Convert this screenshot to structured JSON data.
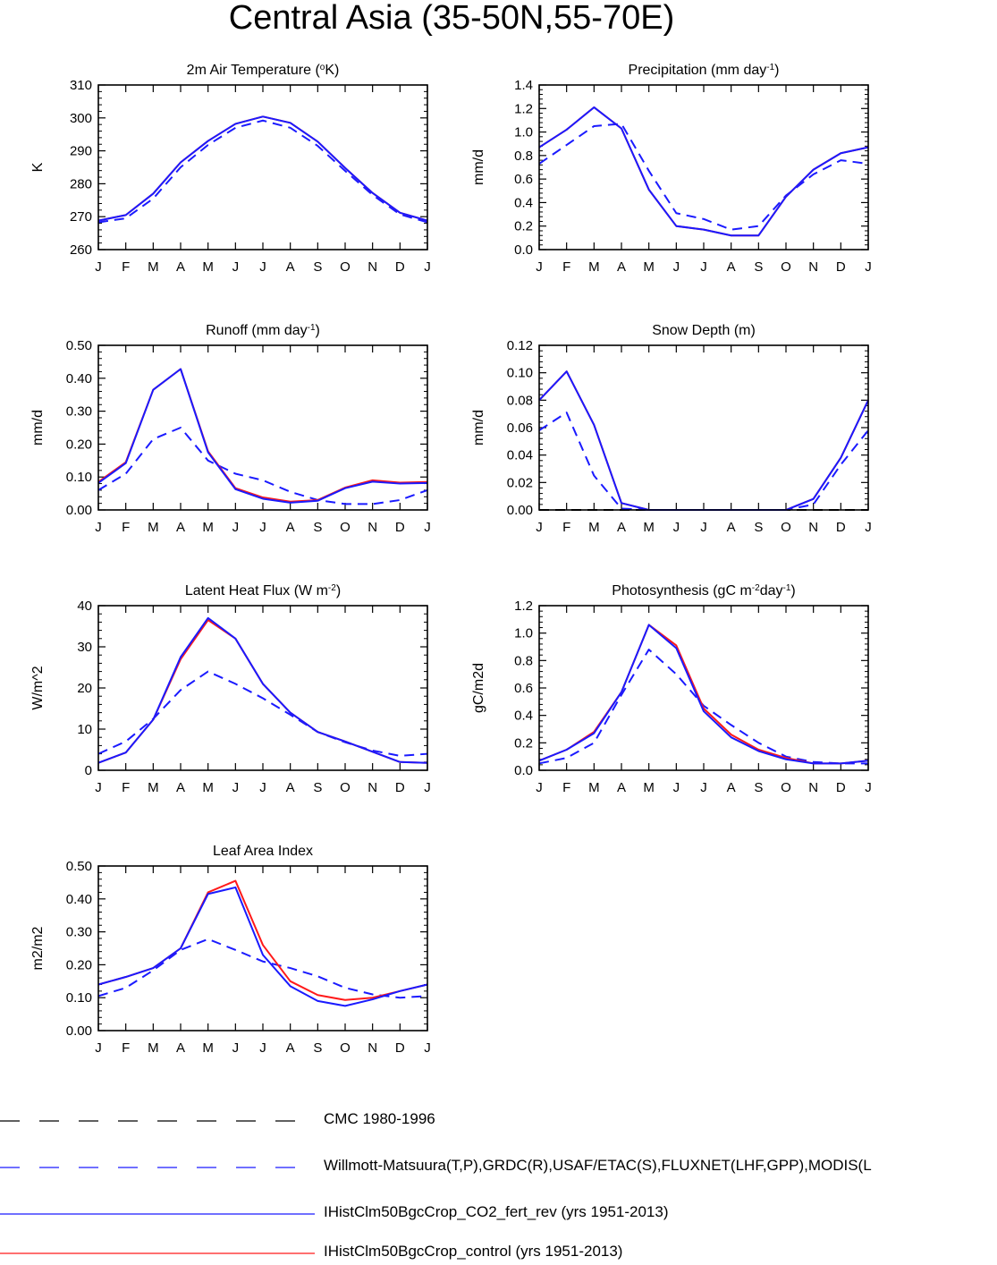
{
  "title": "Central Asia (35-50N,55-70E)",
  "months": [
    "J",
    "F",
    "M",
    "A",
    "M",
    "J",
    "J",
    "A",
    "S",
    "O",
    "N",
    "D",
    "J"
  ],
  "colors": {
    "obs": "#1a1aff",
    "co2": "#1a1aff",
    "control": "#ff1a1a",
    "cmc": "#000000"
  },
  "legend": [
    {
      "label": "CMC 1980-1996",
      "color": "#000000",
      "style": "dashed"
    },
    {
      "label": "Willmott-Matsuura(T,P),GRDC(R),USAF/ETAC(S),FLUXNET(LHF,GPP),MODIS(L",
      "color": "#1a1aff",
      "style": "dashed"
    },
    {
      "label": "IHistClm50BgcCrop_CO2_fert_rev (yrs 1951-2013)",
      "color": "#1a1aff",
      "style": "solid"
    },
    {
      "label": "IHistClm50BgcCrop_control (yrs 1951-2013)",
      "color": "#ff1a1a",
      "style": "solid"
    }
  ],
  "chart_data": [
    {
      "type": "line",
      "title": "2m Air Temperature (",
      "title_sup": "o",
      "title_after": "K)",
      "ylabel": "K",
      "ylim": [
        260,
        310
      ],
      "yticks": [
        260,
        270,
        280,
        290,
        300,
        310
      ],
      "tick_decimals": 0,
      "series": [
        {
          "role": "obs",
          "values": [
            268.3,
            269.5,
            275.5,
            285.0,
            291.8,
            297.0,
            299.2,
            297.0,
            291.5,
            283.9,
            276.6,
            270.7,
            268.3
          ]
        },
        {
          "role": "control",
          "values": [
            268.8,
            270.5,
            277.0,
            286.5,
            293.0,
            298.2,
            300.4,
            298.5,
            292.8,
            284.8,
            277.2,
            271.2,
            268.8
          ]
        },
        {
          "role": "co2",
          "values": [
            268.8,
            270.5,
            277.0,
            286.5,
            293.0,
            298.2,
            300.4,
            298.5,
            292.8,
            284.8,
            277.2,
            271.2,
            268.8
          ]
        }
      ]
    },
    {
      "type": "line",
      "title": "Precipitation (mm day",
      "title_sup": "-1",
      "title_after": ")",
      "ylabel": "mm/d",
      "ylim": [
        0,
        1.4
      ],
      "yticks": [
        0,
        0.2,
        0.4,
        0.6,
        0.8,
        1.0,
        1.2,
        1.4
      ],
      "tick_decimals": 1,
      "series": [
        {
          "role": "obs",
          "values": [
            0.73,
            0.89,
            1.05,
            1.07,
            0.67,
            0.31,
            0.26,
            0.17,
            0.2,
            0.46,
            0.64,
            0.76,
            0.73
          ]
        },
        {
          "role": "control",
          "values": [
            0.87,
            1.02,
            1.21,
            1.03,
            0.51,
            0.2,
            0.17,
            0.12,
            0.12,
            0.45,
            0.68,
            0.82,
            0.87
          ]
        },
        {
          "role": "co2",
          "values": [
            0.87,
            1.02,
            1.21,
            1.03,
            0.51,
            0.2,
            0.17,
            0.12,
            0.12,
            0.45,
            0.68,
            0.82,
            0.87
          ]
        }
      ]
    },
    {
      "type": "line",
      "title": "Runoff (mm day",
      "title_sup": "-1",
      "title_after": ")",
      "ylabel": "mm/d",
      "ylim": [
        0,
        0.5
      ],
      "yticks": [
        0,
        0.1,
        0.2,
        0.3,
        0.4,
        0.5
      ],
      "tick_decimals": 2,
      "series": [
        {
          "role": "obs",
          "values": [
            0.06,
            0.11,
            0.215,
            0.25,
            0.15,
            0.11,
            0.09,
            0.055,
            0.03,
            0.018,
            0.018,
            0.03,
            0.06
          ]
        },
        {
          "role": "control",
          "values": [
            0.085,
            0.145,
            0.365,
            0.428,
            0.178,
            0.066,
            0.038,
            0.025,
            0.03,
            0.068,
            0.09,
            0.083,
            0.085
          ]
        },
        {
          "role": "co2",
          "values": [
            0.082,
            0.142,
            0.365,
            0.428,
            0.175,
            0.063,
            0.034,
            0.022,
            0.028,
            0.066,
            0.086,
            0.08,
            0.082
          ]
        }
      ]
    },
    {
      "type": "line",
      "title": "Snow Depth (m)",
      "ylabel": "mm/d",
      "ylim": [
        0,
        0.12
      ],
      "yticks": [
        0,
        0.02,
        0.04,
        0.06,
        0.08,
        0.1,
        0.12
      ],
      "tick_decimals": 2,
      "series": [
        {
          "role": "cmc",
          "values": [
            0,
            0,
            0,
            0,
            0,
            0,
            0,
            0,
            0,
            0,
            0,
            0,
            0
          ]
        },
        {
          "role": "obs",
          "values": [
            0.058,
            0.071,
            0.025,
            0.001,
            0,
            0,
            0,
            0,
            0,
            0,
            0.004,
            0.033,
            0.058
          ]
        },
        {
          "role": "control",
          "values": [
            0.08,
            0.101,
            0.062,
            0.005,
            0,
            0,
            0,
            0,
            0,
            0,
            0.008,
            0.038,
            0.08
          ]
        },
        {
          "role": "co2",
          "values": [
            0.08,
            0.101,
            0.062,
            0.005,
            0,
            0,
            0,
            0,
            0,
            0,
            0.008,
            0.038,
            0.08
          ]
        }
      ]
    },
    {
      "type": "line",
      "title": "Latent Heat Flux (W m",
      "title_sup": "-2",
      "title_after": ")",
      "ylabel": "W/m^2",
      "ylim": [
        0,
        40
      ],
      "yticks": [
        0,
        10,
        20,
        30,
        40
      ],
      "tick_decimals": 0,
      "series": [
        {
          "role": "obs",
          "values": [
            4.0,
            7.0,
            12.5,
            19.5,
            24.0,
            21.0,
            17.5,
            13.5,
            9.3,
            6.8,
            4.8,
            3.5,
            4.0
          ]
        },
        {
          "role": "control",
          "values": [
            1.8,
            4.3,
            12.3,
            27.0,
            36.5,
            32.0,
            21.0,
            14.0,
            9.3,
            7.0,
            4.5,
            2.0,
            1.8
          ]
        },
        {
          "role": "co2",
          "values": [
            1.8,
            4.3,
            12.3,
            27.5,
            37.0,
            32.0,
            21.0,
            14.0,
            9.3,
            7.0,
            4.5,
            2.0,
            1.8
          ]
        }
      ]
    },
    {
      "type": "line",
      "title": "Photosynthesis (gC m",
      "title_sup": "-2",
      "title_mid": "day",
      "title_sup2": "-1",
      "title_after": ")",
      "ylabel": "gC/m2d",
      "ylim": [
        0,
        1.2
      ],
      "yticks": [
        0,
        0.2,
        0.4,
        0.6,
        0.8,
        1.0,
        1.2
      ],
      "tick_decimals": 1,
      "series": [
        {
          "role": "obs",
          "values": [
            0.05,
            0.09,
            0.2,
            0.55,
            0.88,
            0.7,
            0.47,
            0.33,
            0.2,
            0.1,
            0.06,
            0.05,
            0.05
          ]
        },
        {
          "role": "control",
          "values": [
            0.07,
            0.15,
            0.28,
            0.57,
            1.06,
            0.91,
            0.45,
            0.26,
            0.15,
            0.09,
            0.05,
            0.05,
            0.07
          ]
        },
        {
          "role": "co2",
          "values": [
            0.07,
            0.15,
            0.27,
            0.57,
            1.06,
            0.89,
            0.43,
            0.24,
            0.14,
            0.08,
            0.05,
            0.05,
            0.07
          ]
        }
      ]
    },
    {
      "type": "line",
      "title": "Leaf Area Index",
      "ylabel": "m2/m2",
      "ylim": [
        0,
        0.5
      ],
      "yticks": [
        0,
        0.1,
        0.2,
        0.3,
        0.4,
        0.5
      ],
      "tick_decimals": 2,
      "series": [
        {
          "role": "obs",
          "values": [
            0.105,
            0.13,
            0.183,
            0.245,
            0.278,
            0.245,
            0.21,
            0.19,
            0.165,
            0.13,
            0.11,
            0.1,
            0.105
          ]
        },
        {
          "role": "control",
          "values": [
            0.14,
            0.163,
            0.19,
            0.25,
            0.42,
            0.455,
            0.26,
            0.15,
            0.108,
            0.093,
            0.1,
            0.12,
            0.14
          ]
        },
        {
          "role": "co2",
          "values": [
            0.14,
            0.163,
            0.19,
            0.25,
            0.415,
            0.435,
            0.23,
            0.135,
            0.09,
            0.075,
            0.095,
            0.12,
            0.14
          ]
        }
      ]
    }
  ]
}
